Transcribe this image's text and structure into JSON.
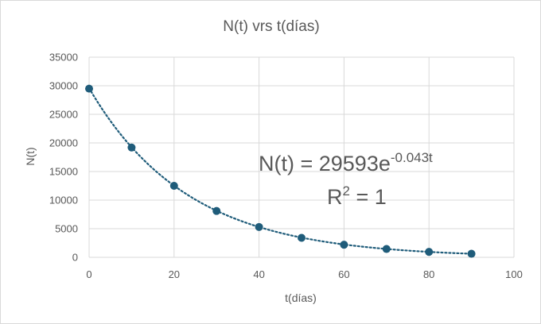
{
  "chart_data": {
    "type": "scatter",
    "title": "N(t) vrs t(días)",
    "xlabel": "t(días)",
    "ylabel": "N(t)",
    "xlim": [
      0,
      100
    ],
    "ylim": [
      0,
      35000
    ],
    "x_ticks": [
      "0",
      "20",
      "40",
      "60",
      "80",
      "100"
    ],
    "y_ticks": [
      "0",
      "5000",
      "10000",
      "15000",
      "20000",
      "25000",
      "30000",
      "35000"
    ],
    "grid": true,
    "legend": "none",
    "series": [
      {
        "x": [
          0,
          10,
          20,
          30,
          40,
          50,
          60,
          70,
          80,
          90
        ],
        "y": [
          29500,
          19200,
          12500,
          8100,
          5300,
          3400,
          2200,
          1450,
          950,
          620
        ],
        "color": "#1f5c7a"
      }
    ],
    "trendline": {
      "type": "exponential",
      "a": 29593,
      "b": -0.043,
      "color": "#1f5c7a",
      "style": "dotted"
    },
    "annotation": {
      "equation_base": "N(t) = 29593e",
      "equation_exponent": "-0.043t",
      "r2_base": "R",
      "r2_sup": "2",
      "r2_value": " = 1"
    }
  }
}
